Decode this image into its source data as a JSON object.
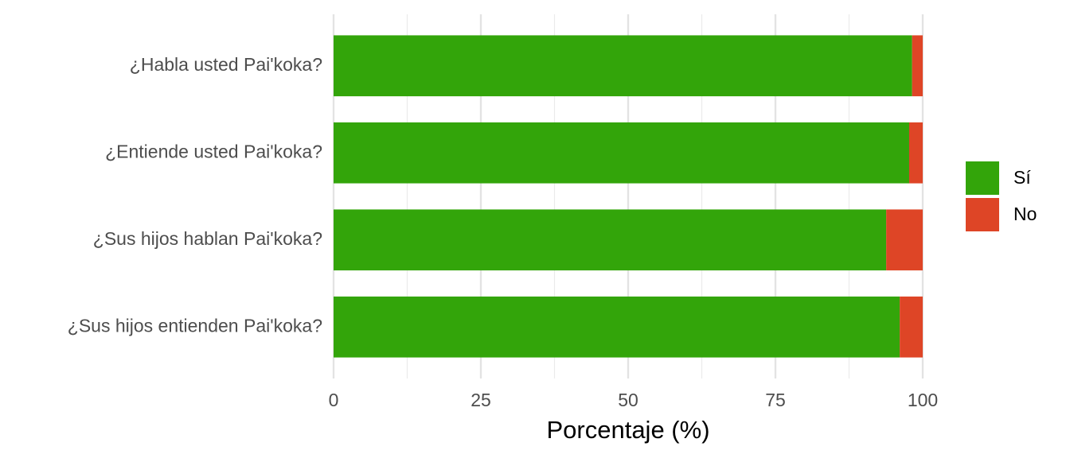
{
  "chart_data": {
    "type": "stacked_barh",
    "categories": [
      "¿Habla usted Pai'koka?",
      "¿Entiende usted Pai'koka?",
      "¿Sus hijos hablan Pai'koka?",
      "¿Sus hijos entienden Pai'koka?"
    ],
    "series": [
      {
        "name": "Sí",
        "color": "#33a50a",
        "values": [
          98.2,
          97.7,
          93.8,
          96.1
        ]
      },
      {
        "name": "No",
        "color": "#de4526",
        "values": [
          1.8,
          2.3,
          6.2,
          3.9
        ]
      }
    ],
    "xlabel": "Porcentaje (%)",
    "xlim": [
      0,
      100
    ],
    "xticks": [
      0,
      25,
      50,
      75,
      100
    ],
    "grid": true,
    "legend": "right"
  }
}
